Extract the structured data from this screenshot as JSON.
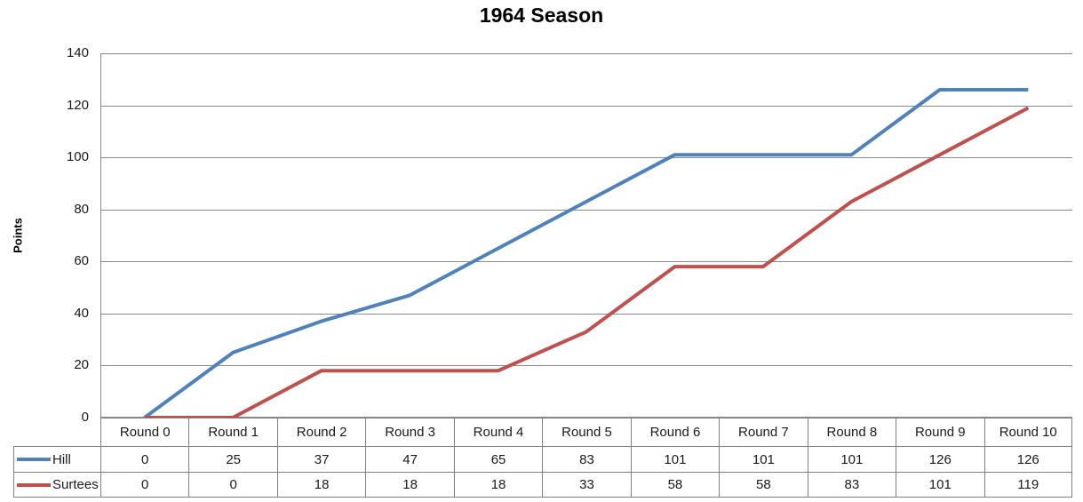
{
  "chart_data": {
    "type": "line",
    "title": "1964 Season",
    "xlabel": "",
    "ylabel": "Points",
    "categories": [
      "Round 0",
      "Round 1",
      "Round 2",
      "Round 3",
      "Round 4",
      "Round 5",
      "Round 6",
      "Round 7",
      "Round 8",
      "Round 9",
      "Round 10"
    ],
    "series": [
      {
        "name": "Hill",
        "color": "#4F81BD",
        "values": [
          0,
          25,
          37,
          47,
          65,
          83,
          101,
          101,
          101,
          126,
          126
        ]
      },
      {
        "name": "Surtees",
        "color": "#C0504D",
        "values": [
          0,
          0,
          18,
          18,
          18,
          33,
          58,
          58,
          83,
          101,
          119
        ]
      }
    ],
    "ylim": [
      0,
      140
    ],
    "yticks": [
      0,
      20,
      40,
      60,
      80,
      100,
      120,
      140
    ],
    "grid": true,
    "legend_position": "table-left",
    "colors": {
      "gridline": "#8a8a8a",
      "axis_line": "#8a8a8a",
      "table_border": "#7f7f7f",
      "text": "#1a1a1a"
    }
  }
}
